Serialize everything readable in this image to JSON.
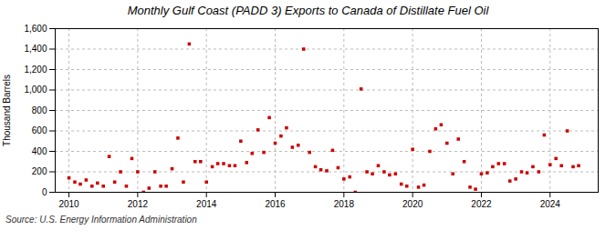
{
  "chart_data": {
    "type": "scatter",
    "title": "Monthly Gulf Coast (PADD 3) Exports to Canada of Distillate Fuel Oil",
    "ylabel": "Thousand Barrels",
    "annotations": [
      "Source: U.S. Energy Information Administration"
    ],
    "color": "#cc0000",
    "marker": "square",
    "grid": true,
    "xlim": [
      2009.6,
      2025.4
    ],
    "xticks": [
      2010,
      2012,
      2014,
      2016,
      2018,
      2020,
      2022,
      2024
    ],
    "ylim": [
      0,
      1600
    ],
    "yticks": [
      0,
      200,
      400,
      600,
      800,
      {
        "value": 1000,
        "label": "1,000"
      },
      {
        "value": 1200,
        "label": "1,200"
      },
      {
        "value": 1400,
        "label": "1,400"
      },
      {
        "value": 1600,
        "label": "1,600"
      }
    ],
    "x": [
      2010.0,
      2010.17,
      2010.33,
      2010.5,
      2010.67,
      2010.83,
      2011.0,
      2011.17,
      2011.33,
      2011.5,
      2011.67,
      2011.83,
      2012.0,
      2012.17,
      2012.33,
      2012.5,
      2012.67,
      2012.83,
      2013.0,
      2013.17,
      2013.33,
      2013.5,
      2013.67,
      2013.83,
      2014.0,
      2014.17,
      2014.33,
      2014.5,
      2014.67,
      2014.83,
      2015.0,
      2015.17,
      2015.33,
      2015.5,
      2015.67,
      2015.83,
      2016.0,
      2016.17,
      2016.33,
      2016.5,
      2016.67,
      2016.83,
      2017.0,
      2017.17,
      2017.33,
      2017.5,
      2017.67,
      2017.83,
      2018.0,
      2018.17,
      2018.33,
      2018.5,
      2018.67,
      2018.83,
      2019.0,
      2019.17,
      2019.33,
      2019.5,
      2019.67,
      2019.83,
      2020.0,
      2020.17,
      2020.33,
      2020.5,
      2020.67,
      2020.83,
      2021.0,
      2021.17,
      2021.33,
      2021.5,
      2021.67,
      2021.83,
      2022.0,
      2022.17,
      2022.33,
      2022.5,
      2022.67,
      2022.83,
      2023.0,
      2023.17,
      2023.33,
      2023.5,
      2023.67,
      2023.83,
      2024.0,
      2024.17,
      2024.33,
      2024.5,
      2024.67,
      2024.83
    ],
    "values": [
      140,
      100,
      80,
      120,
      60,
      90,
      60,
      350,
      100,
      200,
      60,
      330,
      200,
      0,
      40,
      200,
      60,
      60,
      230,
      530,
      100,
      1450,
      300,
      300,
      100,
      250,
      280,
      280,
      260,
      260,
      500,
      290,
      380,
      610,
      390,
      730,
      480,
      550,
      630,
      440,
      460,
      1400,
      390,
      250,
      220,
      210,
      410,
      240,
      130,
      150,
      0,
      1010,
      200,
      180,
      260,
      200,
      170,
      180,
      80,
      60,
      420,
      50,
      70,
      400,
      620,
      660,
      480,
      180,
      520,
      300,
      50,
      30,
      180,
      190,
      250,
      280,
      280,
      110,
      130,
      200,
      190,
      250,
      200,
      560,
      270,
      330,
      260,
      600,
      250,
      260
    ]
  }
}
